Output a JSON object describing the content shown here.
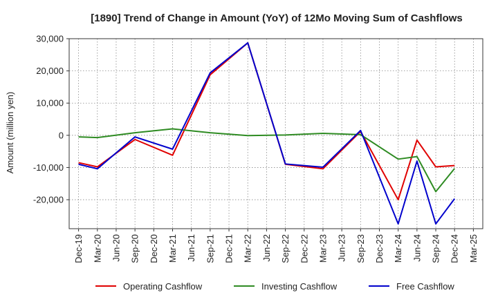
{
  "chart_data": {
    "type": "line",
    "title": "[1890]  Trend of Change in Amount (YoY) of 12Mo Moving Sum of Cashflows",
    "xlabel": "",
    "ylabel": "Amount (million yen)",
    "ylim": [
      -29000,
      30000
    ],
    "yticks": [
      -20000,
      -10000,
      0,
      10000,
      20000,
      30000
    ],
    "ytick_labels": [
      "-20,000",
      "-10,000",
      "0",
      "10,000",
      "20,000",
      "30,000"
    ],
    "categories": [
      "Dec-19",
      "Mar-20",
      "Jun-20",
      "Sep-20",
      "Dec-20",
      "Mar-21",
      "Jun-21",
      "Sep-21",
      "Dec-21",
      "Mar-22",
      "Jun-22",
      "Sep-22",
      "Dec-22",
      "Mar-23",
      "Jun-23",
      "Sep-23",
      "Dec-23",
      "Mar-24",
      "Jun-24",
      "Sep-24",
      "Dec-24",
      "Mar-25"
    ],
    "grid": true,
    "legend_position": "bottom",
    "series": [
      {
        "name": "Operating Cashflow",
        "color": "#e00000",
        "values": [
          -8500,
          -9800,
          null,
          -1300,
          null,
          -6200,
          null,
          18800,
          null,
          28700,
          null,
          -9000,
          null,
          -10400,
          null,
          1200,
          null,
          -20000,
          -1500,
          -9800,
          -9400,
          null
        ]
      },
      {
        "name": "Investing Cashflow",
        "color": "#2e8b22",
        "values": [
          -500,
          -700,
          null,
          800,
          null,
          2000,
          null,
          800,
          null,
          -100,
          null,
          100,
          null,
          600,
          null,
          200,
          null,
          -7400,
          -6600,
          -17500,
          -10300,
          null
        ]
      },
      {
        "name": "Free Cashflow",
        "color": "#0000cc",
        "values": [
          -9000,
          -10400,
          null,
          -500,
          null,
          -4300,
          null,
          19400,
          null,
          28700,
          null,
          -8900,
          null,
          -9900,
          null,
          1500,
          null,
          -27500,
          -8000,
          -27500,
          -19700,
          null
        ]
      }
    ]
  }
}
